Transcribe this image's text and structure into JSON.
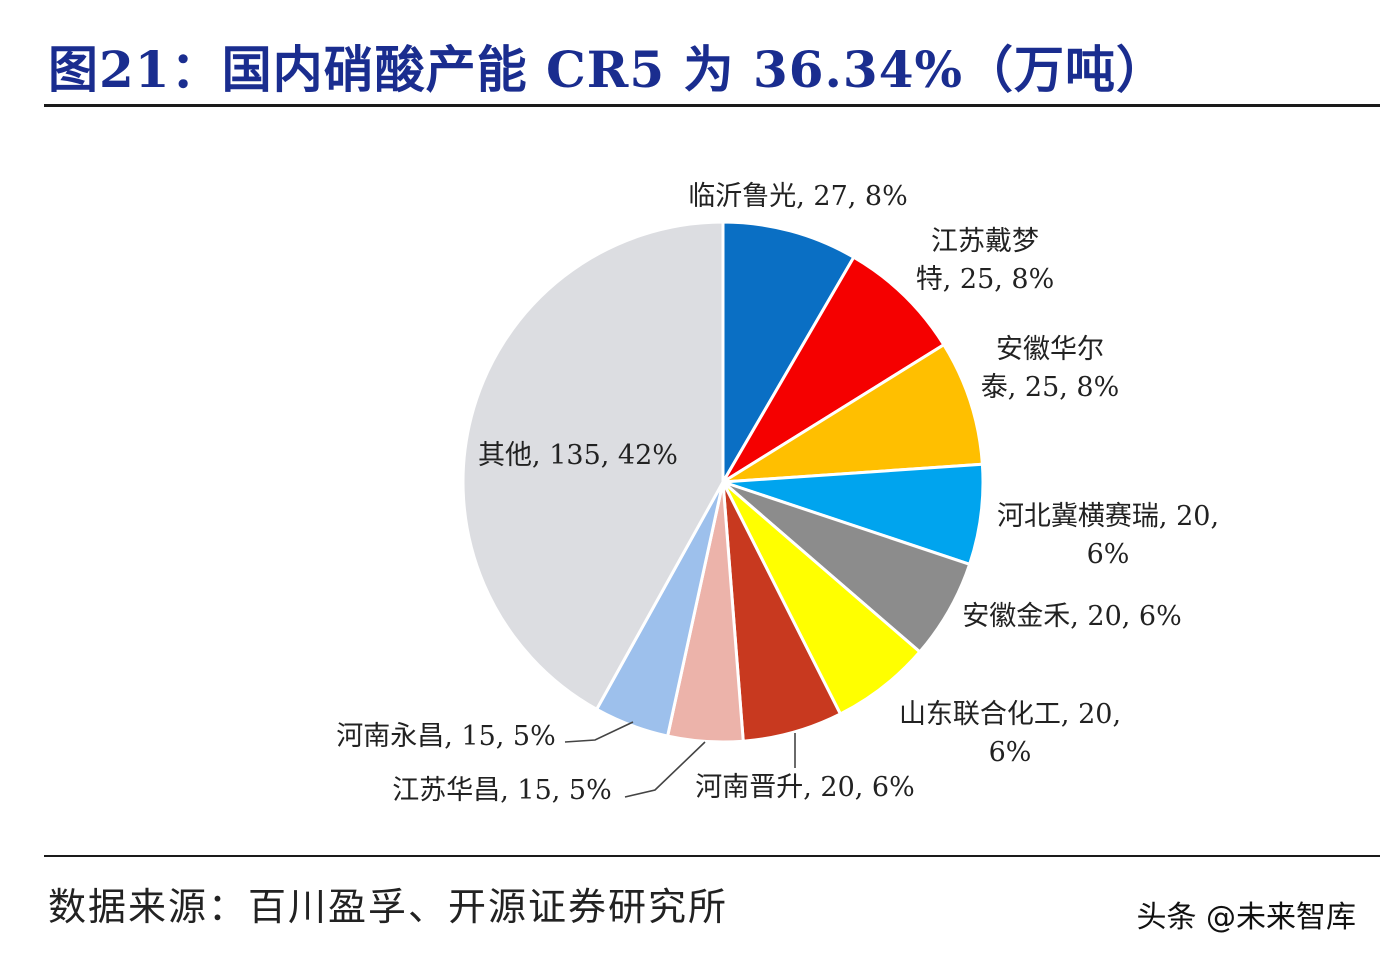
{
  "title": "图21：国内硝酸产能 CR5 为 36.34%（万吨）",
  "source": "数据来源：百川盈孚、开源证券研究所",
  "watermark": "头条 @未来智库",
  "chart_data": {
    "type": "pie",
    "title": "图21：国内硝酸产能 CR5 为 36.34%（万吨）",
    "start_angle_deg": 0,
    "direction": "clockwise",
    "slices": [
      {
        "name": "临沂鲁光",
        "value": 27,
        "pct": "8%",
        "color": "#0a6fc4",
        "label_lines": [
          "临沂鲁光, 27, 8%"
        ]
      },
      {
        "name": "江苏戴梦特",
        "value": 25,
        "pct": "8%",
        "color": "#f50000",
        "label_lines": [
          "江苏戴梦",
          "特, 25, 8%"
        ]
      },
      {
        "name": "安徽华尔泰",
        "value": 25,
        "pct": "8%",
        "color": "#ffbf00",
        "label_lines": [
          "安徽华尔",
          "泰, 25, 8%"
        ]
      },
      {
        "name": "河北冀横赛瑞",
        "value": 20,
        "pct": "6%",
        "color": "#00a4ee",
        "label_lines": [
          "河北冀横赛瑞, 20,",
          "6%"
        ]
      },
      {
        "name": "安徽金禾",
        "value": 20,
        "pct": "6%",
        "color": "#8c8c8c",
        "label_lines": [
          "安徽金禾, 20, 6%"
        ]
      },
      {
        "name": "山东联合化工",
        "value": 20,
        "pct": "6%",
        "color": "#ffff00",
        "label_lines": [
          "山东联合化工, 20,",
          "6%"
        ]
      },
      {
        "name": "河南晋升",
        "value": 20,
        "pct": "6%",
        "color": "#c8391f",
        "label_lines": [
          "河南晋升, 20, 6%"
        ]
      },
      {
        "name": "江苏华昌",
        "value": 15,
        "pct": "5%",
        "color": "#ecb3aa",
        "label_lines": [
          "江苏华昌, 15, 5%"
        ]
      },
      {
        "name": "河南永昌",
        "value": 15,
        "pct": "5%",
        "color": "#9dc0ec",
        "label_lines": [
          "河南永昌, 15, 5%"
        ]
      },
      {
        "name": "其他",
        "value": 135,
        "pct": "42%",
        "color": "#dcdde1",
        "label_lines": [
          "其他, 135, 42%"
        ]
      }
    ]
  }
}
